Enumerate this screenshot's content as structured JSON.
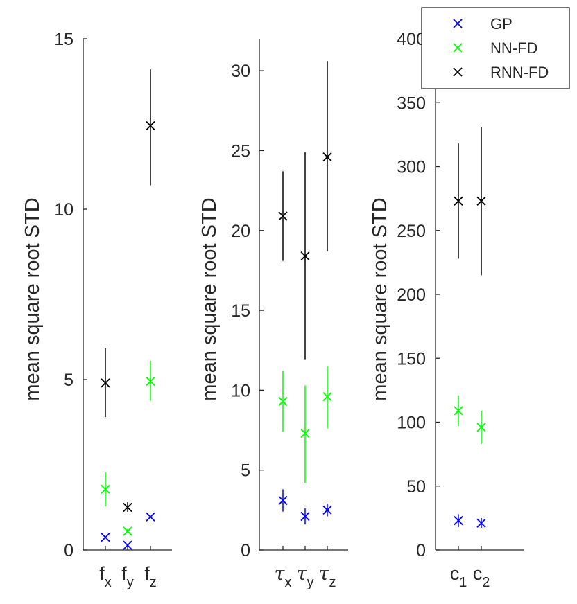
{
  "chart_data": [
    {
      "type": "scatter",
      "panel": "forces",
      "ylabel": "mean square root STD",
      "ylim": [
        0,
        15
      ],
      "yticks": [
        0,
        5,
        10,
        15
      ],
      "categories": [
        {
          "main": "f",
          "sub": "x"
        },
        {
          "main": "f",
          "sub": "y"
        },
        {
          "main": "f",
          "sub": "z"
        }
      ],
      "series": [
        {
          "name": "GP",
          "color": "#0000ff",
          "points": [
            {
              "value": 0.37,
              "low": 0.37,
              "high": 0.37
            },
            {
              "value": 0.14,
              "low": 0.14,
              "high": 0.14
            },
            {
              "value": 0.97,
              "low": 0.97,
              "high": 0.97
            }
          ]
        },
        {
          "name": "NN-FD",
          "color": "#00ff00",
          "points": [
            {
              "value": 1.78,
              "low": 1.28,
              "high": 2.28
            },
            {
              "value": 0.55,
              "low": 0.5,
              "high": 0.62
            },
            {
              "value": 4.95,
              "low": 4.38,
              "high": 5.55
            }
          ]
        },
        {
          "name": "RNN-FD",
          "color": "#000000",
          "points": [
            {
              "value": 4.9,
              "low": 3.9,
              "high": 5.92
            },
            {
              "value": 1.25,
              "low": 1.12,
              "high": 1.4
            },
            {
              "value": 12.45,
              "low": 10.7,
              "high": 14.1
            }
          ]
        }
      ]
    },
    {
      "type": "scatter",
      "panel": "torques",
      "ylabel": "mean square root STD",
      "ylim": [
        0,
        32
      ],
      "yticks": [
        0,
        5,
        10,
        15,
        20,
        25,
        30
      ],
      "categories": [
        {
          "main": "τ",
          "sub": "x"
        },
        {
          "main": "τ",
          "sub": "y"
        },
        {
          "main": "τ",
          "sub": "z"
        }
      ],
      "series": [
        {
          "name": "GP",
          "color": "#0000ff",
          "points": [
            {
              "value": 3.1,
              "low": 2.4,
              "high": 3.8
            },
            {
              "value": 2.1,
              "low": 1.6,
              "high": 2.6
            },
            {
              "value": 2.5,
              "low": 2.1,
              "high": 2.9
            }
          ]
        },
        {
          "name": "NN-FD",
          "color": "#00ff00",
          "points": [
            {
              "value": 9.3,
              "low": 7.4,
              "high": 11.2
            },
            {
              "value": 7.3,
              "low": 4.2,
              "high": 10.3
            },
            {
              "value": 9.6,
              "low": 7.6,
              "high": 11.5
            }
          ]
        },
        {
          "name": "RNN-FD",
          "color": "#000000",
          "points": [
            {
              "value": 20.9,
              "low": 18.1,
              "high": 23.7
            },
            {
              "value": 18.4,
              "low": 11.9,
              "high": 24.9
            },
            {
              "value": 24.6,
              "low": 18.7,
              "high": 30.6
            }
          ]
        }
      ]
    },
    {
      "type": "scatter",
      "panel": "coefficients",
      "ylabel": "mean square root STD",
      "ylim": [
        0,
        400
      ],
      "yticks": [
        0,
        50,
        100,
        150,
        200,
        250,
        300,
        350,
        400
      ],
      "categories": [
        {
          "main": "c",
          "sub": "1"
        },
        {
          "main": "c",
          "sub": "2"
        }
      ],
      "series": [
        {
          "name": "GP",
          "color": "#0000ff",
          "points": [
            {
              "value": 23,
              "low": 18,
              "high": 28
            },
            {
              "value": 21,
              "low": 17,
              "high": 25
            }
          ]
        },
        {
          "name": "NN-FD",
          "color": "#00ff00",
          "points": [
            {
              "value": 109,
              "low": 97,
              "high": 121
            },
            {
              "value": 96,
              "low": 83,
              "high": 109
            }
          ]
        },
        {
          "name": "RNN-FD",
          "color": "#000000",
          "points": [
            {
              "value": 273,
              "low": 228,
              "high": 318
            },
            {
              "value": 273,
              "low": 215,
              "high": 331
            }
          ]
        }
      ]
    }
  ],
  "legend": {
    "position": "top-right",
    "entries": [
      {
        "label": "GP",
        "color": "#0000ff"
      },
      {
        "label": "NN-FD",
        "color": "#00ff00"
      },
      {
        "label": "RNN-FD",
        "color": "#000000"
      }
    ]
  }
}
